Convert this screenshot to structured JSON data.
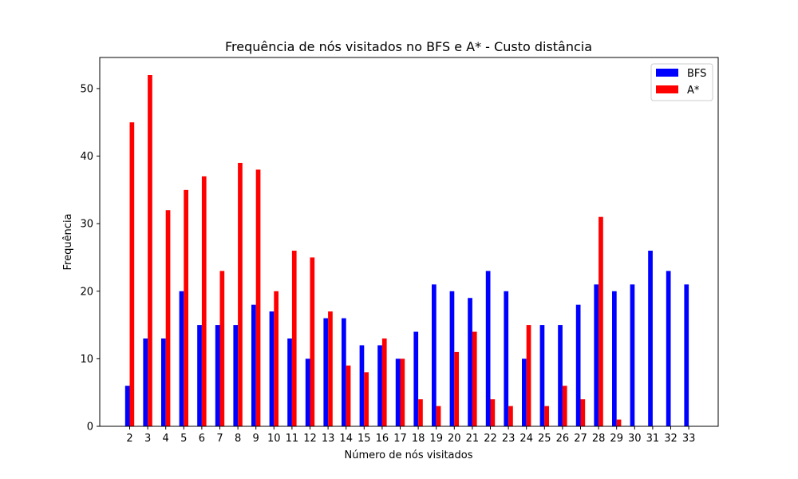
{
  "chart_data": {
    "type": "bar",
    "title": "Frequência de nós visitados no BFS e A* - Custo distância",
    "xlabel": "Número de nós visitados",
    "ylabel": "Frequência",
    "categories": [
      "2",
      "3",
      "4",
      "5",
      "6",
      "7",
      "8",
      "9",
      "10",
      "11",
      "12",
      "13",
      "14",
      "15",
      "16",
      "17",
      "18",
      "19",
      "20",
      "21",
      "22",
      "23",
      "24",
      "25",
      "26",
      "27",
      "28",
      "29",
      "30",
      "31",
      "32",
      "33"
    ],
    "series": [
      {
        "name": "BFS",
        "color": "#0000ff",
        "values": [
          6,
          13,
          13,
          20,
          15,
          15,
          15,
          18,
          17,
          13,
          10,
          16,
          16,
          12,
          12,
          10,
          14,
          21,
          20,
          19,
          23,
          20,
          10,
          15,
          15,
          18,
          21,
          20,
          21,
          26,
          23,
          21
        ]
      },
      {
        "name": "A*",
        "color": "#ff0000",
        "values": [
          45,
          52,
          32,
          35,
          37,
          23,
          39,
          38,
          20,
          26,
          25,
          17,
          9,
          8,
          13,
          10,
          4,
          3,
          11,
          14,
          4,
          3,
          15,
          3,
          6,
          4,
          31,
          1,
          0,
          0,
          0,
          0
        ]
      }
    ],
    "yticks": [
      0,
      10,
      20,
      30,
      40,
      50
    ],
    "ylim": [
      0,
      54.6
    ],
    "grid": false,
    "legend_position": "top-right"
  }
}
